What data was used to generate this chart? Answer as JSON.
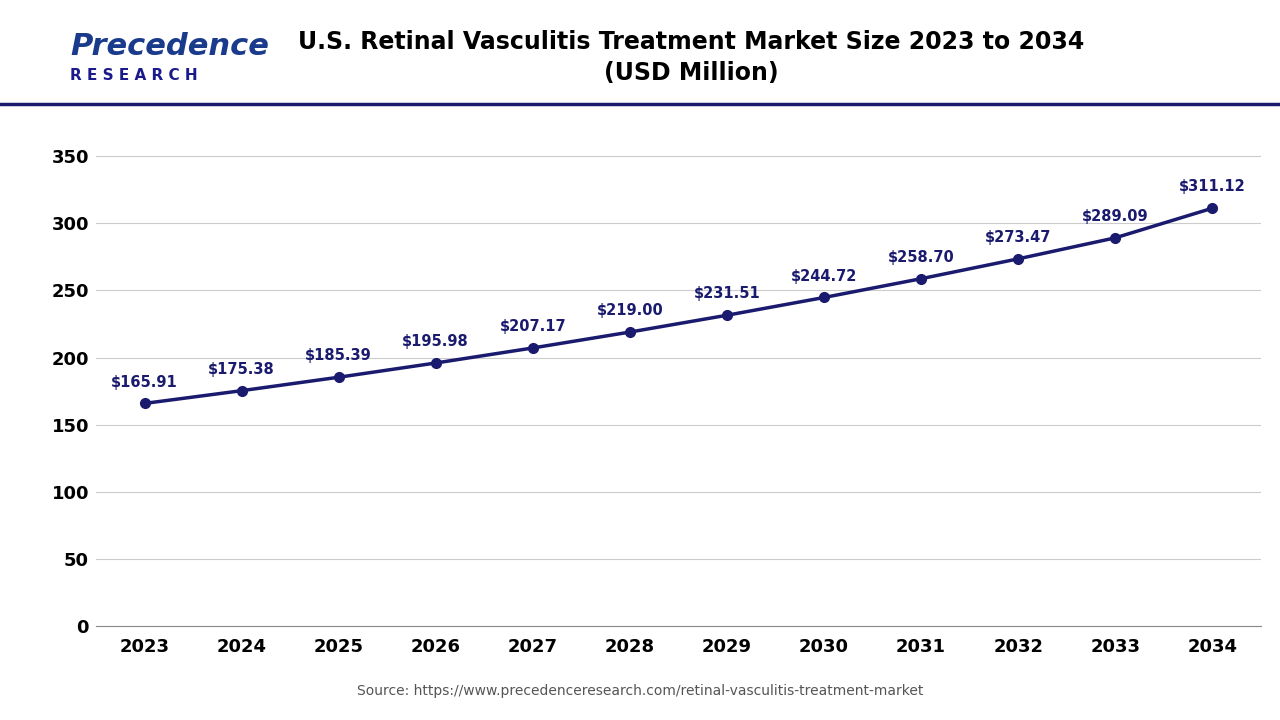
{
  "title_line1": "U.S. Retinal Vasculitis Treatment Market Size 2023 to 2034",
  "title_line2": "(USD Million)",
  "source": "Source: https://www.precedenceresearch.com/retinal-vasculitis-treatment-market",
  "years": [
    2023,
    2024,
    2025,
    2026,
    2027,
    2028,
    2029,
    2030,
    2031,
    2032,
    2033,
    2034
  ],
  "values": [
    165.91,
    175.38,
    185.39,
    195.98,
    207.17,
    219.0,
    231.51,
    244.72,
    258.7,
    273.47,
    289.09,
    311.12
  ],
  "labels": [
    "$165.91",
    "$175.38",
    "$185.39",
    "$195.98",
    "$207.17",
    "$219.00",
    "$231.51",
    "$244.72",
    "$258.70",
    "$273.47",
    "$289.09",
    "$311.12"
  ],
  "line_color": "#1a1a6e",
  "marker_color": "#1a1a6e",
  "bg_color": "#ffffff",
  "grid_color": "#cccccc",
  "title_color": "#000000",
  "tick_color": "#000000",
  "label_color": "#1a1a6e",
  "separator_color": "#1a1a6e",
  "yticks": [
    0,
    50,
    100,
    150,
    200,
    250,
    300,
    350
  ],
  "ylim": [
    0,
    375
  ],
  "xlim": [
    2022.5,
    2034.5
  ],
  "title_fontsize": 17,
  "label_fontsize": 10.5,
  "tick_fontsize": 13,
  "source_fontsize": 10,
  "logo_fontsize_big": 22,
  "logo_fontsize_small": 11,
  "line_width": 2.5,
  "marker_size": 7
}
